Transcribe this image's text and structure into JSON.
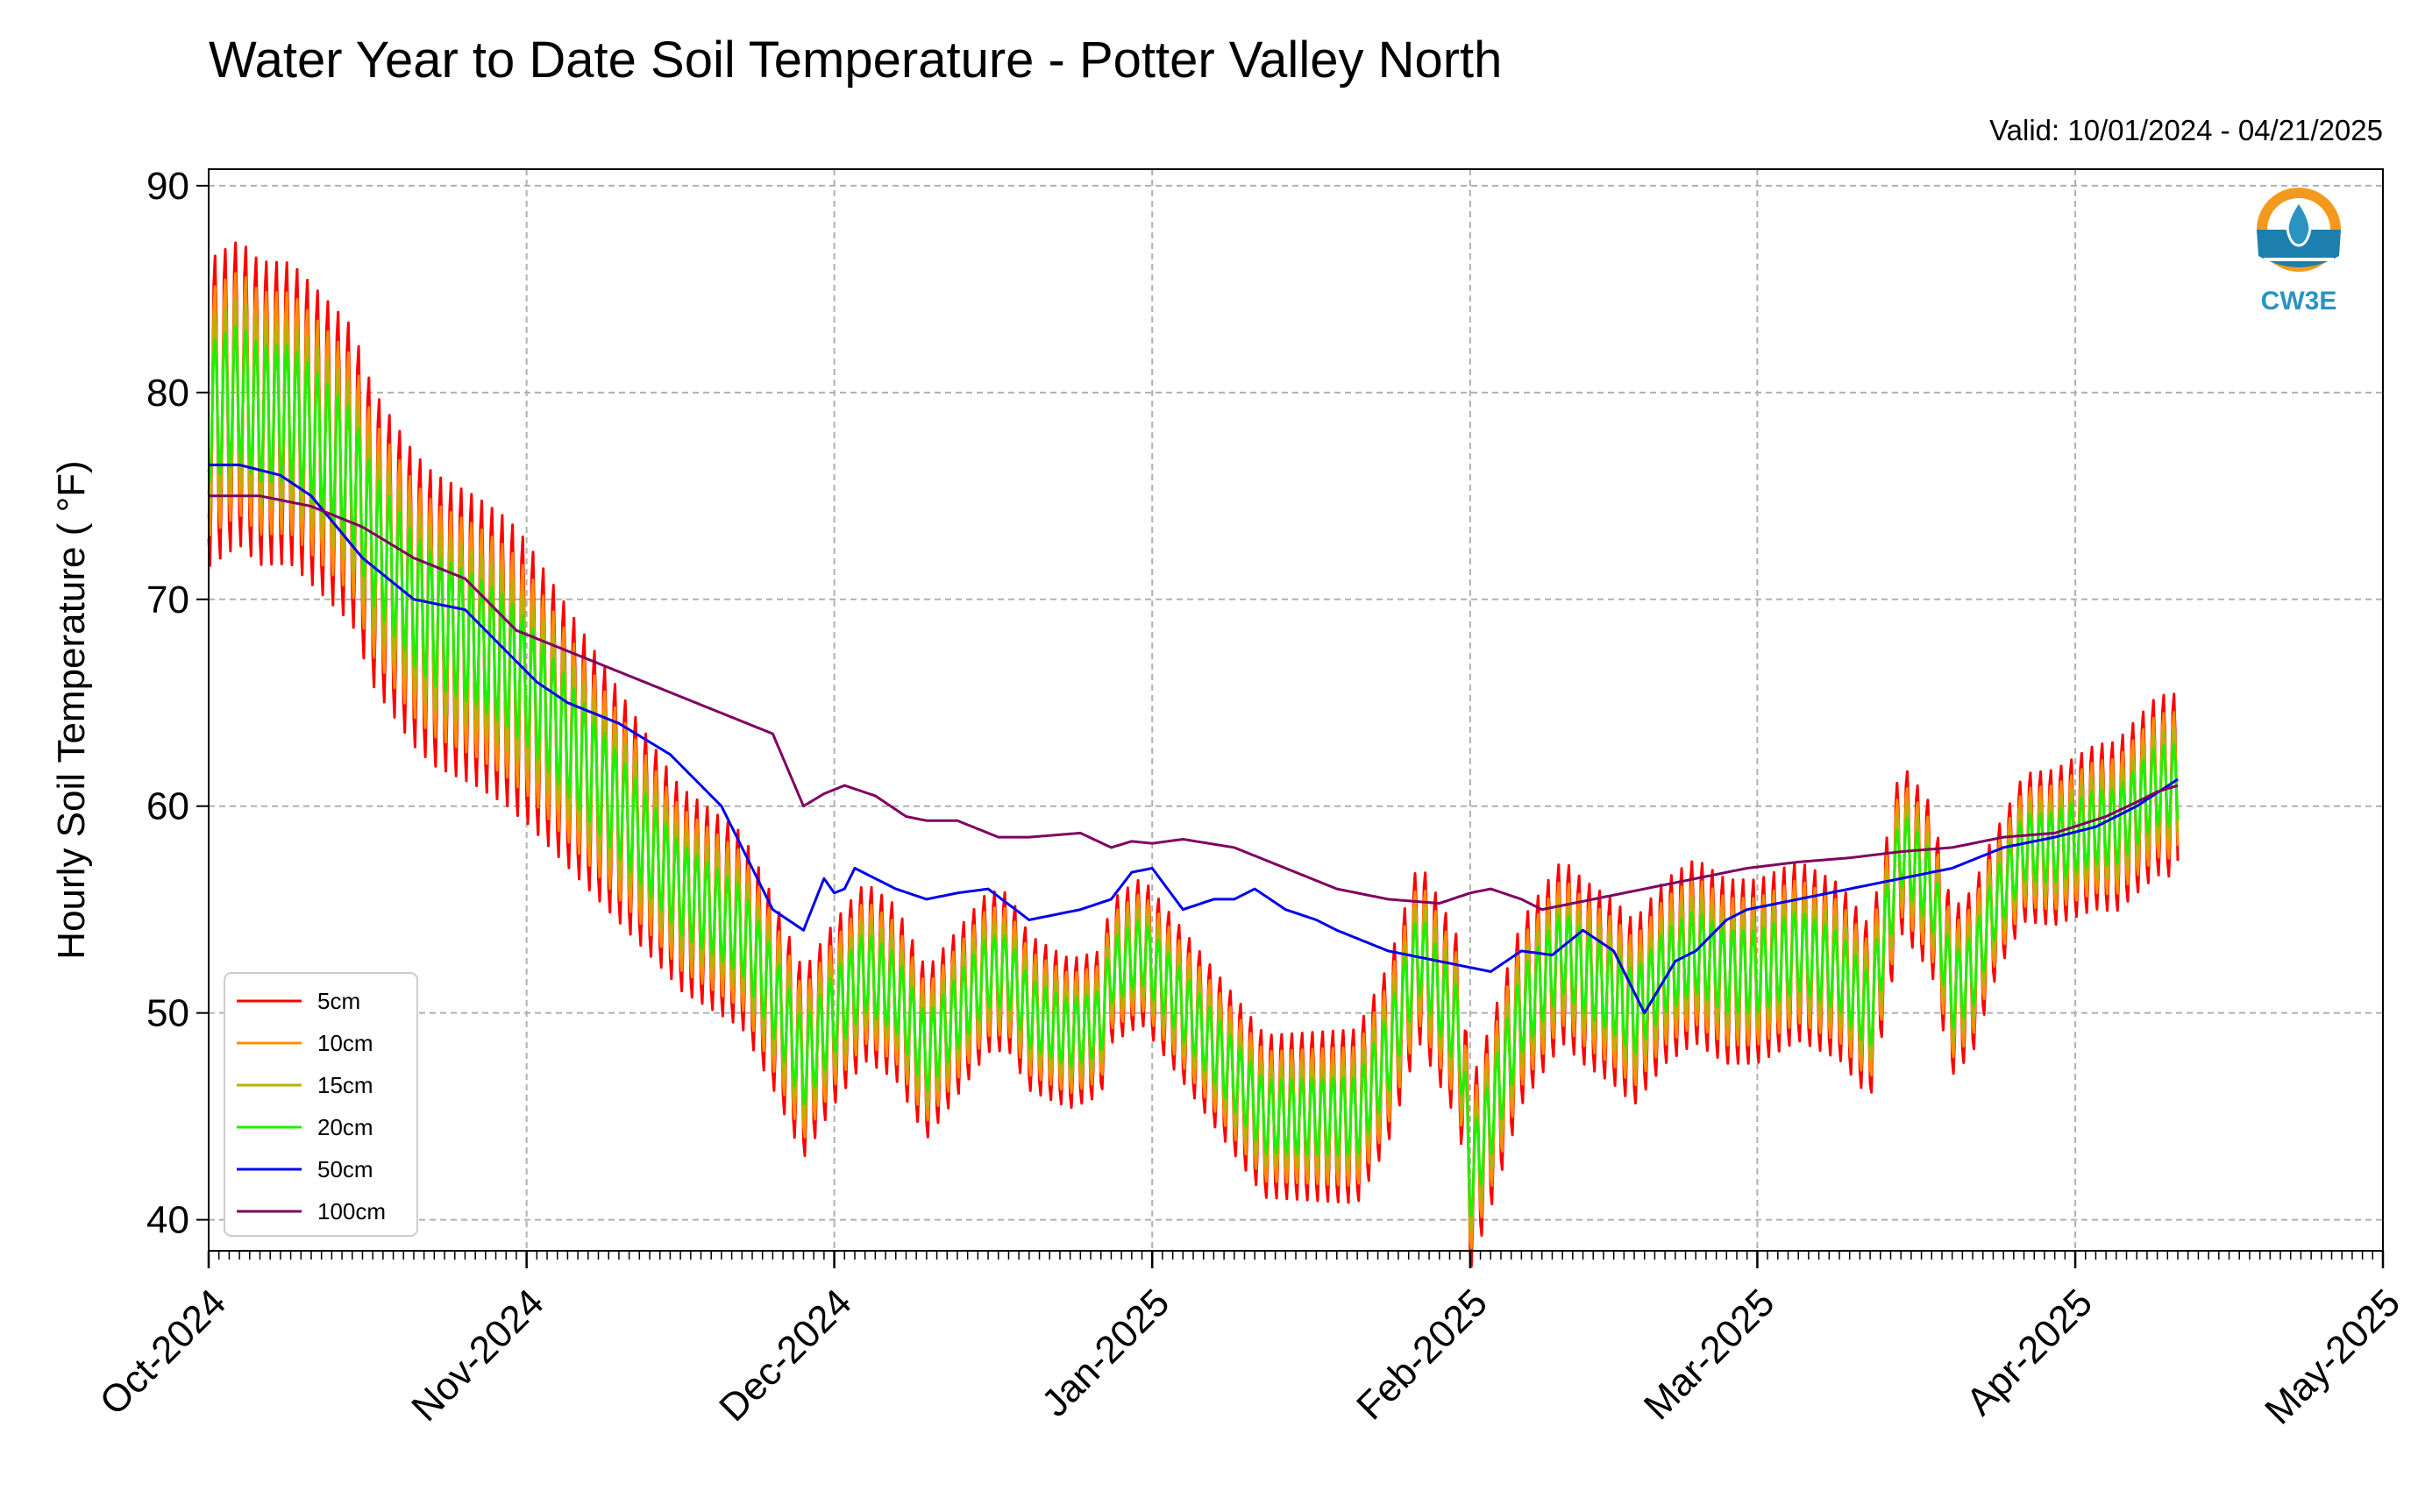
{
  "chart_data": {
    "type": "line",
    "title": "Water Year to Date Soil Temperature - Potter Valley North",
    "valid_text": "Valid: 10/01/2024 - 04/21/2025",
    "ylabel": "Hourly Soil Temperature ( °F)",
    "xlabel": "",
    "ylim": [
      38.5,
      90.8
    ],
    "xlim": [
      "2024-10-01",
      "2025-05-01"
    ],
    "yticks": [
      40,
      50,
      60,
      70,
      80,
      90
    ],
    "xticks": [
      "Oct-2024",
      "Nov-2024",
      "Dec-2024",
      "Jan-2025",
      "Feb-2025",
      "Mar-2025",
      "Apr-2025",
      "May-2025"
    ],
    "grid": true,
    "legend_position": "lower-left",
    "logo_text": "CW3E",
    "series": [
      {
        "name": "5cm",
        "color": "#ff0000",
        "amp": 1.0,
        "x": [
          0,
          3,
          5,
          8,
          10,
          14,
          16,
          20,
          22,
          26,
          29,
          31,
          34,
          37,
          40,
          43,
          46,
          49,
          52,
          55,
          58,
          61,
          64,
          67,
          70,
          73,
          76,
          78,
          80,
          84,
          87,
          88,
          91,
          94,
          97,
          100,
          103,
          106,
          109,
          112,
          115,
          118,
          122,
          123,
          125,
          128,
          132,
          134,
          137,
          139,
          142,
          145,
          148,
          151,
          155,
          159,
          162,
          165,
          168,
          170,
          172,
          174,
          177,
          180,
          184,
          186,
          188,
          190,
          192
        ],
        "y": [
          79,
          80,
          79,
          79,
          78,
          76,
          73,
          70,
          69,
          68,
          67,
          66,
          64,
          62,
          60,
          58,
          56,
          55,
          54,
          51,
          47.5,
          50,
          52,
          51,
          48,
          50,
          52,
          52,
          50,
          49,
          49.5,
          52,
          53,
          51,
          49,
          47,
          45,
          45,
          45,
          45,
          48,
          53,
          49,
          42,
          45,
          50,
          53,
          52,
          51,
          50,
          52,
          53,
          52,
          52,
          53,
          52,
          50,
          58,
          56,
          51,
          52,
          55,
          58,
          58,
          59,
          59,
          60,
          61,
          61
        ],
        "amp_days": [
          0,
          30,
          45,
          60,
          88,
          120,
          150,
          172,
          175,
          192
        ],
        "amp_vals": [
          15,
          14,
          10,
          9,
          7,
          9,
          9,
          8,
          7,
          9
        ]
      },
      {
        "name": "10cm",
        "color": "#ff8c00",
        "amp": 0.8,
        "x": [
          0,
          3,
          5,
          8,
          10,
          14,
          16,
          20,
          22,
          26,
          29,
          31,
          34,
          37,
          40,
          43,
          46,
          49,
          52,
          55,
          58,
          61,
          64,
          67,
          70,
          73,
          76,
          78,
          80,
          84,
          87,
          88,
          91,
          94,
          97,
          100,
          103,
          106,
          109,
          112,
          115,
          118,
          122,
          123,
          125,
          128,
          132,
          134,
          137,
          139,
          142,
          145,
          148,
          151,
          155,
          159,
          162,
          165,
          168,
          170,
          172,
          174,
          177,
          180,
          184,
          186,
          188,
          190,
          192
        ],
        "y": [
          79,
          80,
          79,
          79,
          78,
          76,
          73,
          70,
          69,
          68,
          67,
          66,
          64,
          62,
          60,
          58,
          56,
          55,
          54,
          51,
          47.5,
          50,
          52,
          51,
          48,
          50,
          52,
          52,
          50,
          49,
          49.5,
          52,
          53,
          51,
          49,
          47,
          45,
          45,
          45,
          45,
          48,
          53,
          49,
          42,
          45,
          50,
          53,
          52,
          51,
          50,
          52,
          53,
          52,
          52,
          53,
          52,
          50,
          58,
          56,
          51,
          52,
          55,
          58,
          58,
          59,
          59,
          60,
          61,
          61
        ],
        "amp_days": [
          0,
          30,
          45,
          60,
          88,
          120,
          150,
          172,
          175,
          192
        ],
        "amp_vals": [
          15,
          14,
          10,
          9,
          7,
          9,
          9,
          8,
          7,
          9
        ]
      },
      {
        "name": "15cm",
        "color": "#b5b500",
        "amp": 0.62,
        "x": [
          0,
          3,
          5,
          8,
          10,
          14,
          16,
          20,
          22,
          26,
          29,
          31,
          34,
          37,
          40,
          43,
          46,
          49,
          52,
          55,
          58,
          61,
          64,
          67,
          70,
          73,
          76,
          78,
          80,
          84,
          87,
          88,
          91,
          94,
          97,
          100,
          103,
          106,
          109,
          112,
          115,
          118,
          122,
          123,
          125,
          128,
          132,
          134,
          137,
          139,
          142,
          145,
          148,
          151,
          155,
          159,
          162,
          165,
          168,
          170,
          172,
          174,
          177,
          180,
          184,
          186,
          188,
          190,
          192
        ],
        "y": [
          79,
          80,
          79,
          79,
          78,
          76,
          73,
          70,
          69,
          68,
          67,
          66,
          64,
          62,
          60,
          58,
          56,
          55,
          54,
          51,
          47.5,
          50,
          52,
          51,
          48,
          50,
          52,
          52,
          50,
          49,
          49.5,
          52,
          53,
          51,
          49,
          47,
          45,
          45,
          45,
          45,
          48,
          53,
          49,
          42,
          45,
          50,
          53,
          52,
          51,
          50,
          52,
          53,
          52,
          52,
          53,
          52,
          50,
          58,
          56,
          51,
          52,
          55,
          58,
          58,
          59,
          59,
          60,
          61,
          61
        ],
        "amp_days": [
          0,
          30,
          45,
          60,
          88,
          120,
          150,
          172,
          175,
          192
        ],
        "amp_vals": [
          15,
          14,
          10,
          9,
          7,
          9,
          9,
          8,
          7,
          9
        ]
      },
      {
        "name": "20cm",
        "color": "#22ee00",
        "amp": 0.45,
        "x": [
          0,
          3,
          5,
          8,
          10,
          14,
          16,
          20,
          22,
          26,
          29,
          31,
          34,
          37,
          40,
          43,
          46,
          49,
          52,
          55,
          58,
          61,
          64,
          67,
          70,
          73,
          76,
          78,
          80,
          84,
          87,
          88,
          91,
          94,
          97,
          100,
          103,
          106,
          109,
          112,
          115,
          118,
          122,
          123,
          125,
          128,
          132,
          134,
          137,
          139,
          142,
          145,
          148,
          151,
          155,
          159,
          162,
          165,
          168,
          170,
          172,
          174,
          177,
          180,
          184,
          186,
          188,
          190,
          192
        ],
        "y": [
          79,
          80,
          79,
          79,
          78,
          76,
          73,
          70,
          69,
          68,
          67,
          66,
          64,
          62,
          60,
          58,
          56,
          55,
          54,
          51,
          47.5,
          50,
          52,
          51,
          48,
          50,
          52,
          52,
          50,
          49,
          49.5,
          52,
          53,
          51,
          49,
          47,
          45,
          45,
          45,
          45,
          48,
          53,
          49,
          42,
          45,
          50,
          53,
          52,
          51,
          50,
          52,
          53,
          52,
          52,
          53,
          52,
          50,
          58,
          56,
          51,
          52,
          55,
          58,
          58,
          59,
          59,
          60,
          61,
          61
        ],
        "amp_days": [
          0,
          30,
          45,
          60,
          88,
          120,
          150,
          172,
          175,
          192
        ],
        "amp_vals": [
          15,
          14,
          10,
          9,
          7,
          9,
          9,
          8,
          7,
          9
        ]
      },
      {
        "name": "50cm",
        "color": "#0000ee",
        "amp": 0,
        "x": [
          0,
          3,
          7,
          10,
          15,
          20,
          25,
          30,
          32,
          35,
          40,
          45,
          50,
          55,
          58,
          60,
          61,
          62,
          63,
          65,
          67,
          70,
          73,
          76,
          80,
          85,
          88,
          90,
          92,
          95,
          98,
          100,
          102,
          105,
          108,
          110,
          115,
          120,
          125,
          128,
          131,
          134,
          137,
          140,
          143,
          145,
          147,
          148,
          150,
          155,
          160,
          165,
          170,
          175,
          178,
          180,
          184,
          188,
          192
        ],
        "y": [
          76.5,
          76.5,
          76,
          75,
          72,
          70,
          69.5,
          67,
          66,
          65,
          64,
          62.5,
          60,
          55,
          54,
          56.5,
          55.8,
          56,
          57,
          56.5,
          56,
          55.5,
          55.8,
          56,
          54.5,
          55,
          55.5,
          56.8,
          57,
          55,
          55.5,
          55.5,
          56,
          55,
          54.5,
          54,
          53,
          52.5,
          52,
          53,
          52.8,
          54,
          53,
          50,
          52.5,
          53,
          54,
          54.5,
          55,
          55.5,
          56,
          56.5,
          57,
          58,
          58.3,
          58.5,
          59,
          60,
          61.3
        ]
      },
      {
        "name": "100cm",
        "color": "#800060",
        "amp": 0,
        "x": [
          0,
          5,
          10,
          15,
          20,
          25,
          30,
          35,
          40,
          45,
          50,
          55,
          58,
          59,
          60,
          62,
          65,
          68,
          70,
          73,
          77,
          80,
          85,
          88,
          90,
          92,
          95,
          100,
          105,
          110,
          115,
          120,
          123,
          125,
          128,
          130,
          132,
          135,
          140,
          145,
          150,
          155,
          160,
          165,
          170,
          175,
          180,
          185,
          188,
          190,
          192
        ],
        "y": [
          75,
          75,
          74.5,
          73.5,
          72,
          71,
          68.5,
          67.5,
          66.5,
          65.5,
          64.5,
          63.5,
          60,
          60.3,
          60.6,
          61,
          60.5,
          59.5,
          59.3,
          59.3,
          58.5,
          58.5,
          58.7,
          58,
          58.3,
          58.2,
          58.4,
          58,
          57,
          56,
          55.5,
          55.3,
          55.8,
          56,
          55.5,
          55,
          55.2,
          55.5,
          56,
          56.5,
          57,
          57.3,
          57.5,
          57.8,
          58,
          58.5,
          58.7,
          59.5,
          60.2,
          60.7,
          61
        ]
      }
    ]
  }
}
